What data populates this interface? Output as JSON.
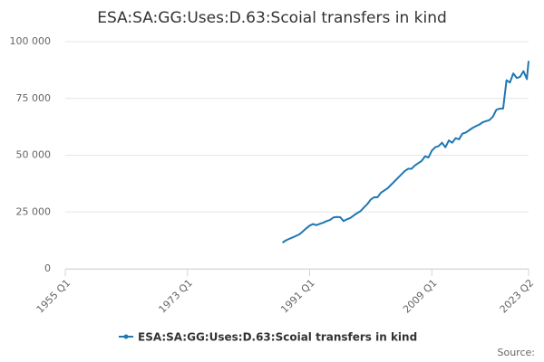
{
  "chart_data": {
    "type": "line",
    "title": "ESA:SA:GG:Uses:D.63:Scoial transfers in kind",
    "source": "Source:",
    "x": [
      "1987 Q1",
      "1987 Q3",
      "1988 Q1",
      "1988 Q3",
      "1989 Q1",
      "1989 Q3",
      "1990 Q1",
      "1990 Q3",
      "1991 Q1",
      "1991 Q3",
      "1992 Q1",
      "1992 Q3",
      "1993 Q1",
      "1993 Q3",
      "1994 Q1",
      "1994 Q3",
      "1995 Q1",
      "1995 Q3",
      "1996 Q1",
      "1996 Q3",
      "1997 Q1",
      "1997 Q3",
      "1998 Q1",
      "1998 Q3",
      "1999 Q1",
      "1999 Q3",
      "2000 Q1",
      "2000 Q3",
      "2001 Q1",
      "2001 Q3",
      "2002 Q1",
      "2002 Q3",
      "2003 Q1",
      "2003 Q3",
      "2004 Q1",
      "2004 Q3",
      "2005 Q1",
      "2005 Q3",
      "2006 Q1",
      "2006 Q3",
      "2007 Q1",
      "2007 Q3",
      "2008 Q1",
      "2008 Q3",
      "2009 Q1",
      "2009 Q3",
      "2010 Q1",
      "2010 Q3",
      "2011 Q1",
      "2011 Q3",
      "2012 Q1",
      "2012 Q3",
      "2013 Q1",
      "2013 Q3",
      "2014 Q1",
      "2014 Q3",
      "2015 Q1",
      "2015 Q3",
      "2016 Q1",
      "2016 Q3",
      "2017 Q1",
      "2017 Q3",
      "2018 Q1",
      "2018 Q3",
      "2019 Q1",
      "2019 Q3",
      "2020 Q1",
      "2020 Q3",
      "2021 Q1",
      "2021 Q3",
      "2022 Q1",
      "2022 Q3",
      "2023 Q1",
      "2023 Q2"
    ],
    "series": [
      {
        "name": "ESA:SA:GG:Uses:D.63:Scoial transfers in kind",
        "color": "#1f77b4",
        "values": [
          11500,
          12500,
          13200,
          13800,
          14500,
          15200,
          16500,
          17800,
          19000,
          19700,
          19200,
          19800,
          20300,
          21000,
          21500,
          22600,
          22800,
          22700,
          21000,
          21800,
          22400,
          23500,
          24500,
          25400,
          27000,
          28500,
          30500,
          31500,
          31500,
          33500,
          34500,
          35500,
          37000,
          38500,
          40000,
          41500,
          43000,
          44000,
          44000,
          45500,
          46500,
          47500,
          49500,
          49000,
          52000,
          53500,
          54000,
          55500,
          53500,
          56500,
          55500,
          57500,
          57000,
          59500,
          60000,
          61000,
          62000,
          62800,
          63500,
          64500,
          65000,
          65500,
          67000,
          70000,
          70500,
          70500,
          83000,
          82000,
          86000,
          84000,
          84500,
          87000,
          83500,
          91500
        ]
      }
    ],
    "xlim": [
      "1955 Q1",
      "2023 Q2"
    ],
    "xticks": [
      "1955 Q1",
      "1973 Q1",
      "1991 Q1",
      "2009 Q1",
      "2023 Q2"
    ],
    "ylim": [
      0,
      100000
    ],
    "yticks": [
      0,
      {
        "value": 25000,
        "label": "25 000"
      },
      {
        "value": 50000,
        "label": "50 000"
      },
      {
        "value": 75000,
        "label": "75 000"
      },
      {
        "value": 100000,
        "label": "100 000"
      }
    ],
    "grid": true
  }
}
